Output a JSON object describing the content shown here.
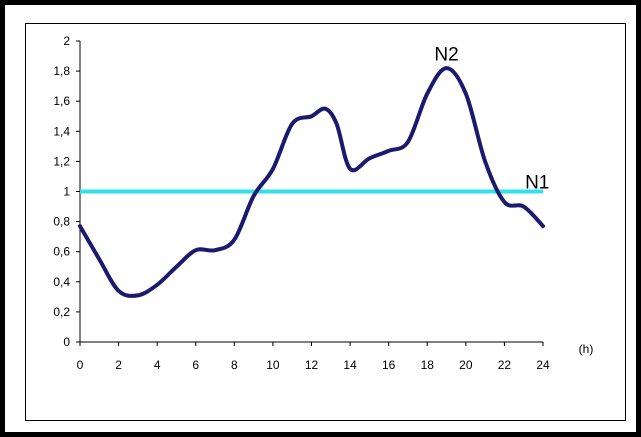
{
  "chart_data": {
    "type": "line",
    "title": "",
    "xlabel": "",
    "ylabel": "",
    "x_unit_label": "(h)",
    "xlim": [
      0,
      24
    ],
    "ylim": [
      0,
      2
    ],
    "x_ticks": [
      "0",
      "2",
      "4",
      "6",
      "8",
      "10",
      "12",
      "14",
      "16",
      "18",
      "20",
      "22",
      "24"
    ],
    "y_ticks": [
      "0",
      "0,2",
      "0,4",
      "0,6",
      "0,8",
      "1",
      "1,2",
      "1,4",
      "1,6",
      "1,8",
      "2"
    ],
    "grid": false,
    "series": [
      {
        "color": "#1a1a6e",
        "x": [
          0,
          1,
          2,
          3,
          4,
          5,
          6,
          7,
          8,
          9,
          10,
          11,
          12,
          12.7,
          13.3,
          14,
          15,
          16,
          17,
          18,
          19,
          20,
          21,
          22,
          23,
          24
        ],
        "y": [
          0.77,
          0.55,
          0.34,
          0.31,
          0.38,
          0.5,
          0.61,
          0.61,
          0.68,
          0.97,
          1.15,
          1.45,
          1.5,
          1.55,
          1.45,
          1.15,
          1.22,
          1.27,
          1.33,
          1.65,
          1.82,
          1.65,
          1.2,
          0.93,
          0.9,
          0.77
        ]
      },
      {
        "color": "#33e0f0",
        "x": [
          0,
          24
        ],
        "y": [
          1,
          1
        ]
      }
    ],
    "annotations": [
      {
        "text": "N2",
        "x": 19,
        "y": 1.87
      },
      {
        "text": "N1",
        "x": 23.7,
        "y": 1.02
      }
    ]
  }
}
